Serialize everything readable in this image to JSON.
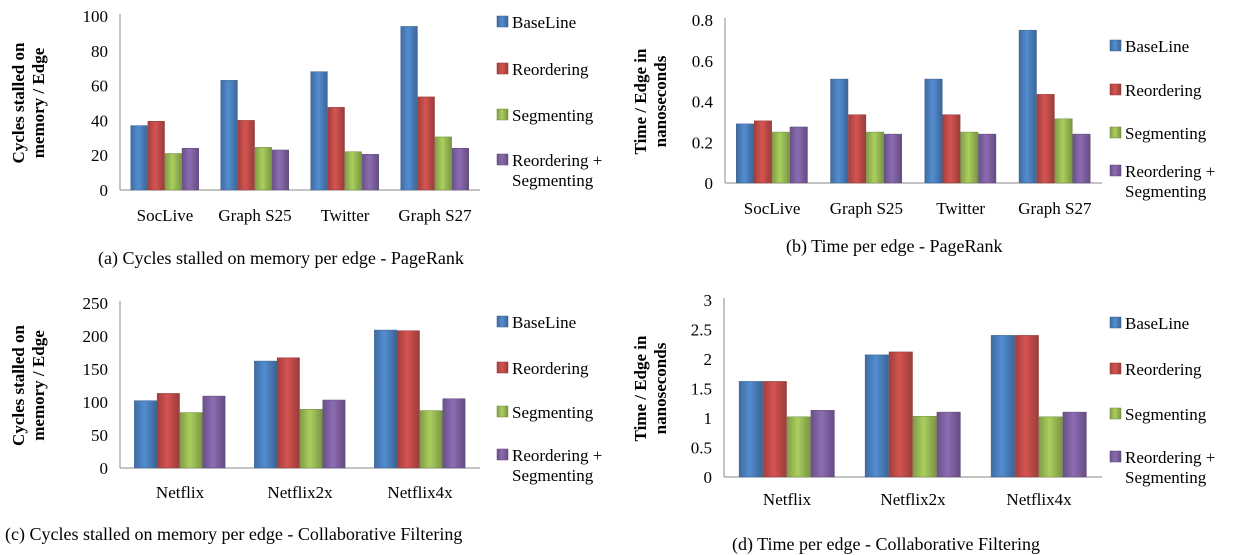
{
  "legend_colors": [
    "#4a7ebb",
    "#be4b48",
    "#98b954",
    "#7d60a0"
  ],
  "chart_data": [
    {
      "type": "bar",
      "categories": [
        "SocLive",
        "Graph S25",
        "Twitter",
        "Graph S27"
      ],
      "series": [
        {
          "name": "BaseLine",
          "values": [
            37,
            63,
            68,
            94
          ]
        },
        {
          "name": "Reordering",
          "values": [
            39.5,
            40,
            47.5,
            53.5
          ]
        },
        {
          "name": "Segmenting",
          "values": [
            21,
            24.5,
            22,
            30.5
          ]
        },
        {
          "name": "Reordering + Segmenting",
          "values": [
            24,
            23,
            20.5,
            24
          ]
        }
      ],
      "ylabel_line1": "Cycles stalled on",
      "ylabel_line2": "memory / Edge",
      "yticks": [
        "0",
        "20",
        "40",
        "60",
        "80",
        "100"
      ],
      "ylim": [
        0,
        100
      ],
      "caption": "(a) Cycles stalled on memory per edge - PageRank"
    },
    {
      "type": "bar",
      "categories": [
        "SocLive",
        "Graph S25",
        "Twitter",
        "Graph S27"
      ],
      "series": [
        {
          "name": "BaseLine",
          "values": [
            0.29,
            0.51,
            0.51,
            0.75
          ]
        },
        {
          "name": "Reordering",
          "values": [
            0.305,
            0.335,
            0.335,
            0.435
          ]
        },
        {
          "name": "Segmenting",
          "values": [
            0.25,
            0.25,
            0.25,
            0.315
          ]
        },
        {
          "name": "Reordering + Segmenting",
          "values": [
            0.275,
            0.24,
            0.24,
            0.24
          ]
        }
      ],
      "ylabel_line1": "Time / Edge in",
      "ylabel_line2": "nanoseconds",
      "yticks": [
        "0",
        "0.2",
        "0.4",
        "0.6",
        "0.8"
      ],
      "ylim": [
        0,
        0.8
      ],
      "caption": "(b) Time per edge - PageRank"
    },
    {
      "type": "bar",
      "categories": [
        "Netflix",
        "Netflix2x",
        "Netflix4x"
      ],
      "series": [
        {
          "name": "BaseLine",
          "values": [
            102,
            162,
            209
          ]
        },
        {
          "name": "Reordering",
          "values": [
            113,
            167,
            208
          ]
        },
        {
          "name": "Segmenting",
          "values": [
            84,
            89,
            87
          ]
        },
        {
          "name": "Reordering + Segmenting",
          "values": [
            109,
            103,
            105
          ]
        }
      ],
      "ylabel_line1": "Cycles stalled on",
      "ylabel_line2": "memory / Edge",
      "yticks": [
        "0",
        "50",
        "100",
        "150",
        "200",
        "250"
      ],
      "ylim": [
        0,
        250
      ],
      "caption": "(c) Cycles stalled on memory per edge - Collaborative Filtering"
    },
    {
      "type": "bar",
      "categories": [
        "Netflix",
        "Netflix2x",
        "Netflix4x"
      ],
      "series": [
        {
          "name": "BaseLine",
          "values": [
            1.62,
            2.07,
            2.4
          ]
        },
        {
          "name": "Reordering",
          "values": [
            1.62,
            2.12,
            2.4
          ]
        },
        {
          "name": "Segmenting",
          "values": [
            1.02,
            1.03,
            1.02
          ]
        },
        {
          "name": "Reordering + Segmenting",
          "values": [
            1.13,
            1.1,
            1.1
          ]
        }
      ],
      "ylabel_line1": "Time / Edge in",
      "ylabel_line2": "nanoseconds",
      "yticks": [
        "0",
        "0.5",
        "1",
        "1.5",
        "2",
        "2.5",
        "3"
      ],
      "ylim": [
        0,
        3
      ],
      "caption": "(d) Time per edge - Collaborative Filtering"
    }
  ]
}
